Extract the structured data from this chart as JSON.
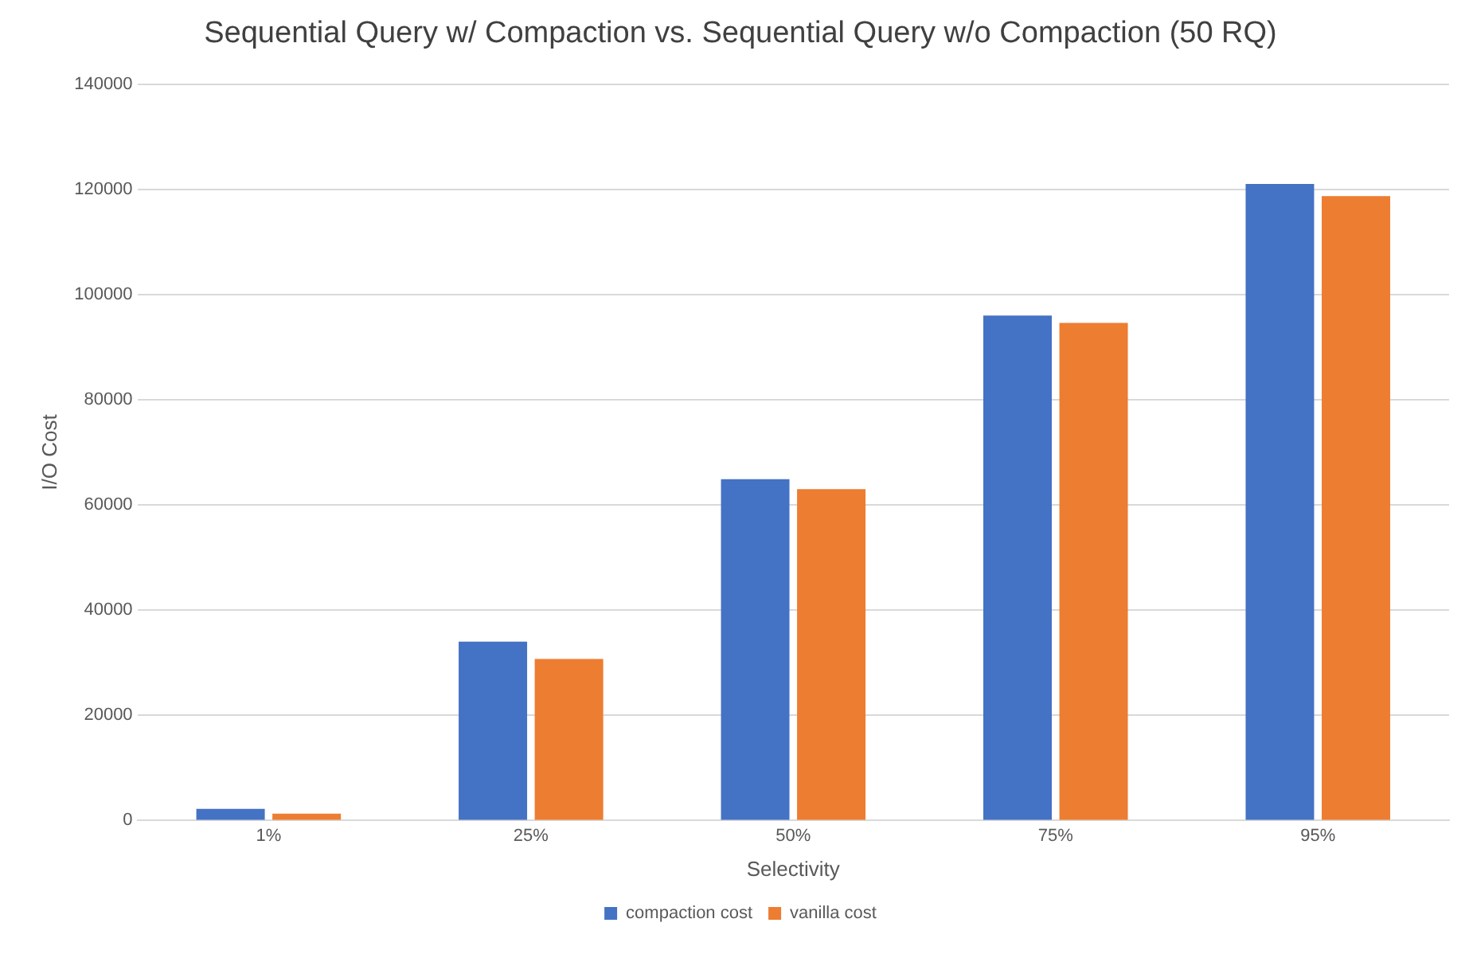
{
  "chart_data": {
    "type": "bar",
    "title": "Sequential Query w/ Compaction vs. Sequential Query w/o Compaction (50 RQ)",
    "xlabel": "Selectivity",
    "ylabel": "I/O Cost",
    "categories": [
      "1%",
      "25%",
      "50%",
      "75%",
      "95%"
    ],
    "series": [
      {
        "name": "compaction cost",
        "color": "#4472c4",
        "values": [
          2200,
          34000,
          64900,
          96000,
          121000
        ]
      },
      {
        "name": "vanilla cost",
        "color": "#ed7d31",
        "values": [
          1300,
          30700,
          63000,
          94600,
          118700
        ]
      }
    ],
    "ylim": [
      0,
      140000
    ],
    "yticks": [
      0,
      20000,
      40000,
      60000,
      80000,
      100000,
      120000,
      140000
    ],
    "grid": "y",
    "legend": "bottom"
  }
}
